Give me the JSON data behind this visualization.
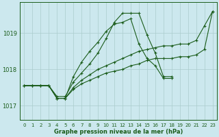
{
  "xlabel": "Graphe pression niveau de la mer (hPa)",
  "x_ticks": [
    0,
    1,
    2,
    3,
    4,
    5,
    6,
    7,
    8,
    9,
    10,
    11,
    12,
    13,
    14,
    15,
    16,
    17,
    18,
    19,
    20,
    21,
    22,
    23
  ],
  "ylim": [
    1016.6,
    1019.85
  ],
  "yticks": [
    1017,
    1018,
    1019
  ],
  "background_color": "#cce8ee",
  "grid_color": "#aacccc",
  "line_color": "#1a5c1a",
  "series": [
    {
      "x": [
        0,
        1,
        2,
        3,
        4,
        5,
        6,
        7,
        8,
        9,
        10,
        11,
        12,
        13,
        14,
        15,
        16,
        17,
        18,
        19,
        20,
        21,
        22,
        23
      ],
      "y": [
        1017.55,
        1017.55,
        1017.55,
        1017.55,
        1017.25,
        1017.25,
        1017.65,
        1017.9,
        1018.15,
        1018.45,
        1018.85,
        1019.3,
        1019.55,
        1019.55,
        1019.55,
        1018.95,
        1018.45,
        1017.8,
        1017.8,
        null,
        null,
        null,
        null,
        null
      ]
    },
    {
      "x": [
        0,
        1,
        2,
        3,
        4,
        5,
        6,
        7,
        8,
        9,
        10,
        11,
        12,
        13,
        14,
        15,
        16,
        17,
        18
      ],
      "y": [
        1017.55,
        1017.55,
        1017.55,
        1017.55,
        1017.2,
        1017.2,
        1017.8,
        1018.2,
        1018.5,
        1018.75,
        1019.05,
        1019.25,
        1019.3,
        1019.4,
        1018.7,
        1018.3,
        1018.1,
        1017.75,
        1017.75
      ]
    },
    {
      "x": [
        0,
        1,
        2,
        3,
        4,
        5,
        6,
        7,
        8,
        9,
        10,
        11,
        12,
        13,
        14,
        15,
        16,
        17,
        18,
        19,
        20,
        21,
        22,
        23
      ],
      "y": [
        1017.55,
        1017.55,
        1017.55,
        1017.55,
        1017.2,
        1017.2,
        1017.5,
        1017.7,
        1017.85,
        1018.0,
        1018.1,
        1018.2,
        1018.3,
        1018.4,
        1018.5,
        1018.55,
        1018.6,
        1018.65,
        1018.65,
        1018.7,
        1018.7,
        1018.8,
        1019.2,
        1019.6
      ]
    },
    {
      "x": [
        0,
        1,
        2,
        3,
        4,
        5,
        6,
        7,
        8,
        9,
        10,
        11,
        12,
        13,
        14,
        15,
        16,
        17,
        18,
        19,
        20,
        21,
        22,
        23
      ],
      "y": [
        1017.55,
        1017.55,
        1017.55,
        1017.55,
        1017.2,
        1017.2,
        1017.45,
        1017.6,
        1017.7,
        1017.8,
        1017.9,
        1017.95,
        1018.0,
        1018.1,
        1018.15,
        1018.25,
        1018.3,
        1018.3,
        1018.3,
        1018.35,
        1018.35,
        1018.4,
        1018.55,
        1019.6
      ]
    }
  ]
}
